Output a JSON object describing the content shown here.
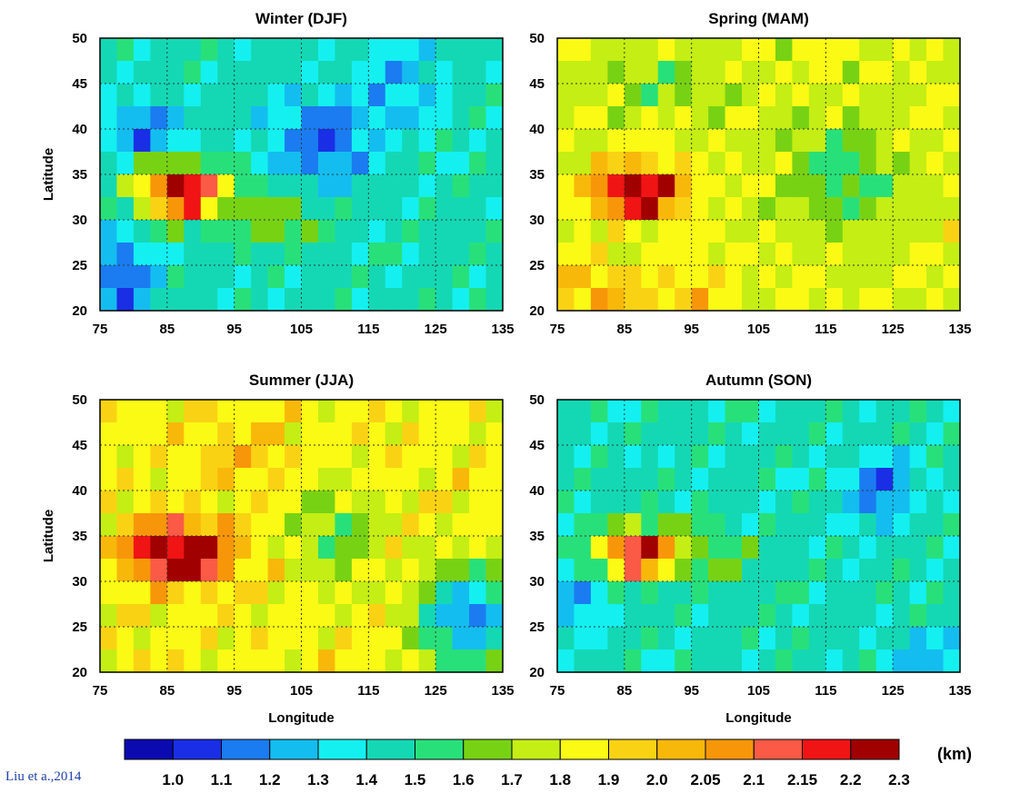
{
  "chart_data": {
    "type": "heatmap",
    "panels": [
      {
        "title": "Winter (DJF)"
      },
      {
        "title": "Spring (MAM)"
      },
      {
        "title": "Summer (JJA)"
      },
      {
        "title": "Autumn (SON)"
      }
    ],
    "xlabel": "Longitude",
    "ylabel": "Latitude",
    "xlim": [
      75,
      135
    ],
    "ylim": [
      20,
      50
    ],
    "xticks": [
      75,
      85,
      95,
      105,
      115,
      125,
      135
    ],
    "yticks": [
      20,
      25,
      30,
      35,
      40,
      45,
      50
    ],
    "grid": true,
    "colorbar": {
      "unit": "(km)",
      "labels": [
        "1.0",
        "1.1",
        "1.2",
        "1.3",
        "1.4",
        "1.5",
        "1.6",
        "1.7",
        "1.8",
        "1.9",
        "2.0",
        "2.05",
        "2.1",
        "2.15",
        "2.2",
        "2.3"
      ],
      "colors": [
        "#0a0ab0",
        "#1a2ee6",
        "#1a7cf0",
        "#14bdf0",
        "#14f0f0",
        "#14d8b4",
        "#28e07a",
        "#78d214",
        "#c4ee14",
        "#fafa14",
        "#fad214",
        "#f8b80a",
        "#f8960a",
        "#fa5a46",
        "#f01414",
        "#a00000"
      ]
    }
  },
  "citation": "Liu et a.,2014"
}
